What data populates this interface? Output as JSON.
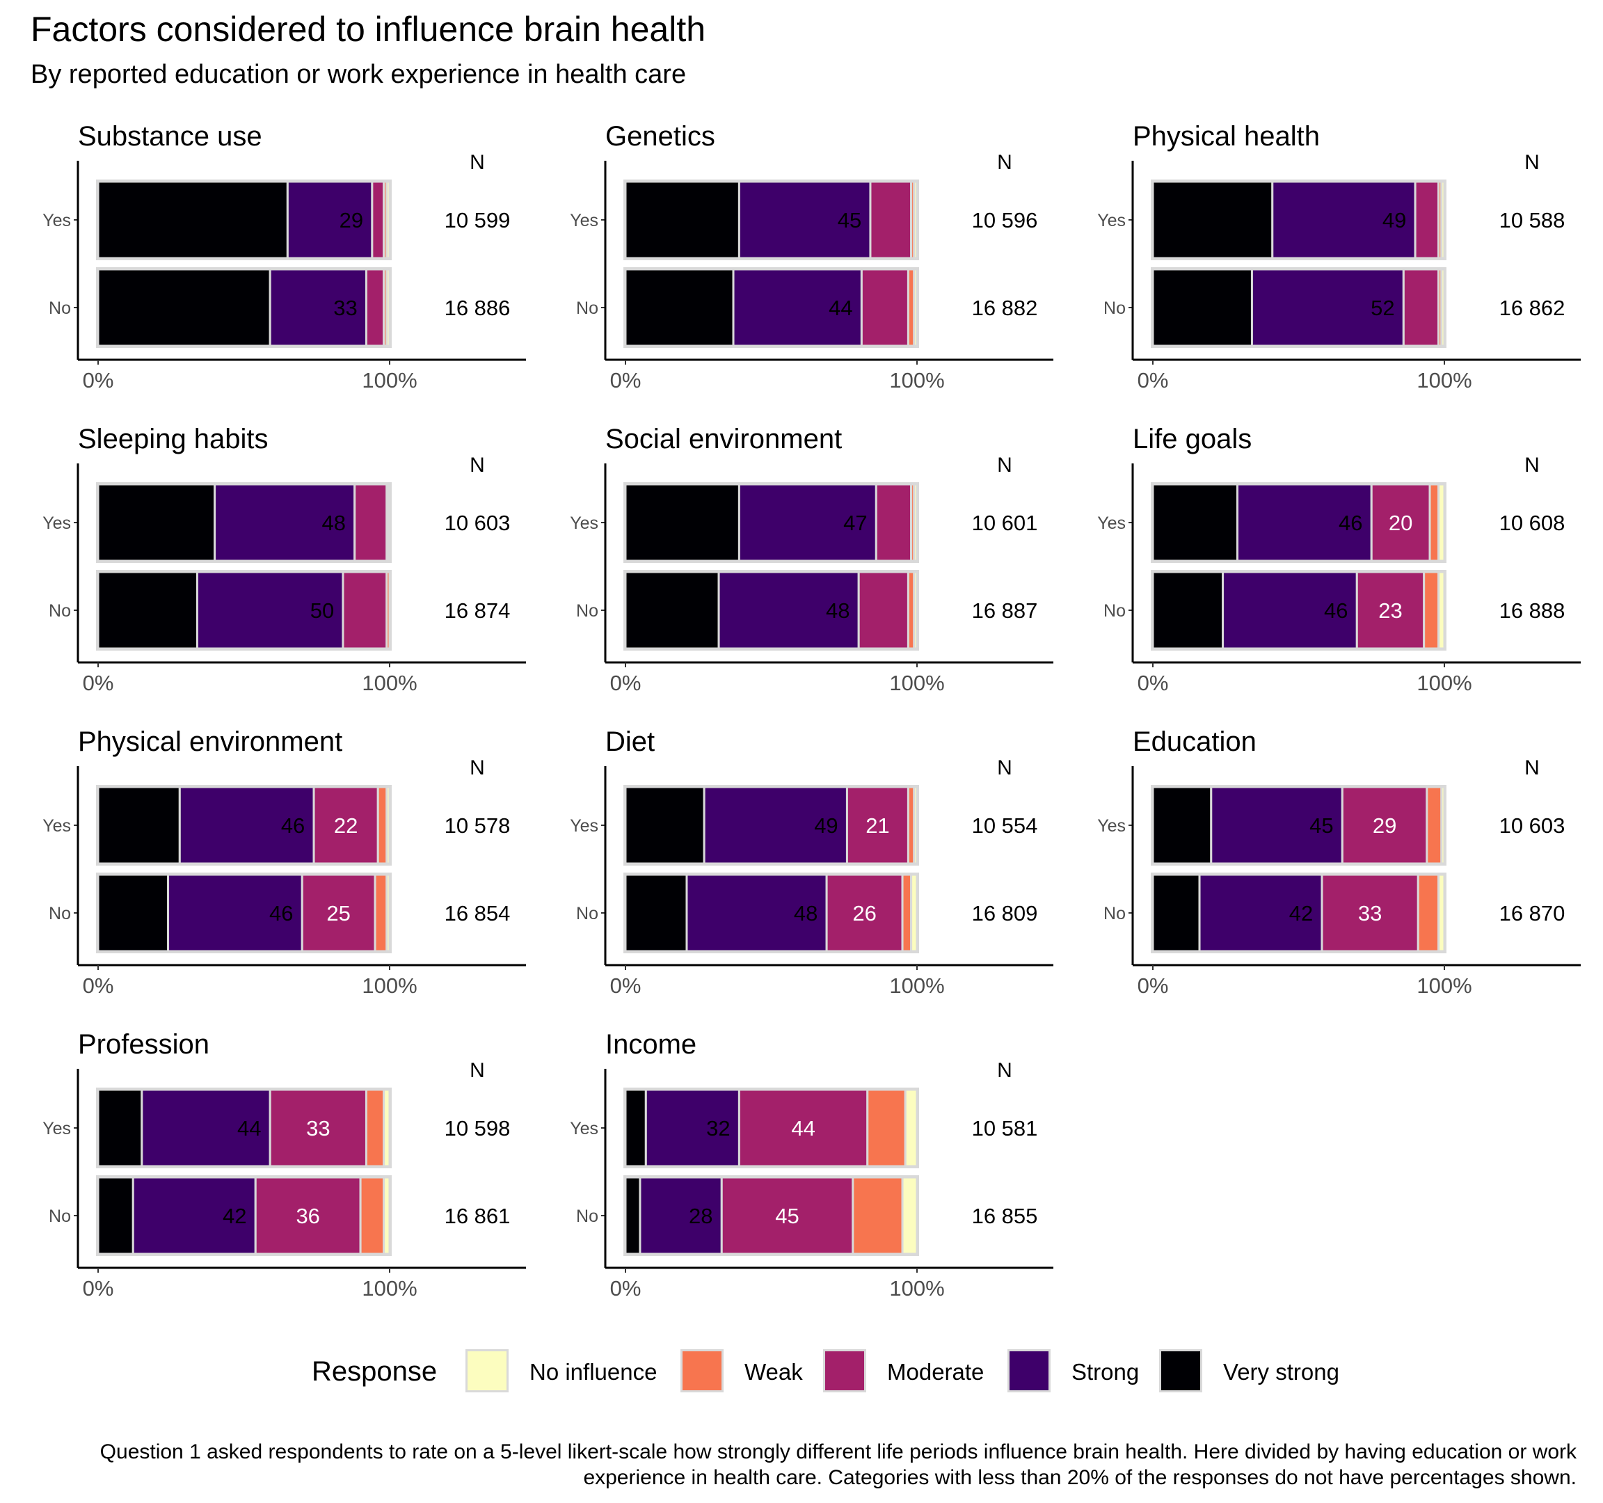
{
  "title": "Factors considered to influence brain health",
  "subtitle": "By reported education or work experience in health care",
  "caption": "Question 1 asked respondents to rate on a 5-level likert-scale how strongly different life periods influence brain health. Here divided by having education or work experience in health care. Categories with less than 20% of the responses do not have percentages shown.",
  "legend": {
    "title": "Response",
    "items": [
      {
        "label": "No influence",
        "color": "#FCFDBF"
      },
      {
        "label": "Weak",
        "color": "#F7754F"
      },
      {
        "label": "Moderate",
        "color": "#A3206A"
      },
      {
        "label": "Strong",
        "color": "#3E006A"
      },
      {
        "label": "Very strong",
        "color": "#000004"
      }
    ]
  },
  "chart_data": {
    "type": "bar",
    "orientation": "horizontal",
    "stacked": true,
    "x_tick_labels": [
      "0%",
      "100%"
    ],
    "n_header": "N",
    "categories": [
      "Yes",
      "No"
    ],
    "series_order": [
      "Very strong",
      "Strong",
      "Moderate",
      "Weak",
      "No influence"
    ],
    "label_text_colors": {
      "Strong": "#000000",
      "Moderate": "#ffffff"
    },
    "facets": [
      {
        "title": "Substance use",
        "rows": [
          {
            "group": "Yes",
            "n": "10 599",
            "values": [
              65,
              29,
              4,
              1,
              1
            ]
          },
          {
            "group": "No",
            "n": "16 886",
            "values": [
              59,
              33,
              6,
              1,
              1
            ]
          }
        ]
      },
      {
        "title": "Genetics",
        "rows": [
          {
            "group": "Yes",
            "n": "10 596",
            "values": [
              39,
              45,
              14,
              1,
              1
            ]
          },
          {
            "group": "No",
            "n": "16 882",
            "values": [
              37,
              44,
              16,
              2,
              1
            ]
          }
        ]
      },
      {
        "title": "Physical health",
        "rows": [
          {
            "group": "Yes",
            "n": "10 588",
            "values": [
              41,
              49,
              8,
              1,
              1
            ]
          },
          {
            "group": "No",
            "n": "16 862",
            "values": [
              34,
              52,
              12,
              1,
              1
            ]
          }
        ]
      },
      {
        "title": "Sleeping habits",
        "rows": [
          {
            "group": "Yes",
            "n": "10 603",
            "values": [
              40,
              48,
              11,
              0.5,
              0.5
            ]
          },
          {
            "group": "No",
            "n": "16 874",
            "values": [
              34,
              50,
              15,
              1,
              0
            ]
          }
        ]
      },
      {
        "title": "Social environment",
        "rows": [
          {
            "group": "Yes",
            "n": "10 601",
            "values": [
              39,
              47,
              12,
              1,
              1
            ]
          },
          {
            "group": "No",
            "n": "16 887",
            "values": [
              32,
              48,
              17,
              2,
              1
            ]
          }
        ]
      },
      {
        "title": "Life goals",
        "rows": [
          {
            "group": "Yes",
            "n": "10 608",
            "values": [
              29,
              46,
              20,
              3,
              2
            ]
          },
          {
            "group": "No",
            "n": "16 888",
            "values": [
              24,
              46,
              23,
              5,
              2
            ]
          }
        ]
      },
      {
        "title": "Physical environment",
        "rows": [
          {
            "group": "Yes",
            "n": "10 578",
            "values": [
              28,
              46,
              22,
              3,
              1
            ]
          },
          {
            "group": "No",
            "n": "16 854",
            "values": [
              24,
              46,
              25,
              4,
              1
            ]
          }
        ]
      },
      {
        "title": "Diet",
        "rows": [
          {
            "group": "Yes",
            "n": "10 554",
            "values": [
              27,
              49,
              21,
              2,
              1
            ]
          },
          {
            "group": "No",
            "n": "16 809",
            "values": [
              21,
              48,
              26,
              3,
              2
            ]
          }
        ]
      },
      {
        "title": "Education",
        "rows": [
          {
            "group": "Yes",
            "n": "10 603",
            "values": [
              20,
              45,
              29,
              5,
              1
            ]
          },
          {
            "group": "No",
            "n": "16 870",
            "values": [
              16,
              42,
              33,
              7,
              2
            ]
          }
        ]
      },
      {
        "title": "Profession",
        "rows": [
          {
            "group": "Yes",
            "n": "10 598",
            "values": [
              15,
              44,
              33,
              6,
              2
            ]
          },
          {
            "group": "No",
            "n": "16 861",
            "values": [
              12,
              42,
              36,
              8,
              2
            ]
          }
        ]
      },
      {
        "title": "Income",
        "rows": [
          {
            "group": "Yes",
            "n": "10 581",
            "values": [
              7,
              32,
              44,
              13,
              4
            ]
          },
          {
            "group": "No",
            "n": "16 855",
            "values": [
              5,
              28,
              45,
              17,
              5
            ]
          }
        ]
      }
    ]
  }
}
